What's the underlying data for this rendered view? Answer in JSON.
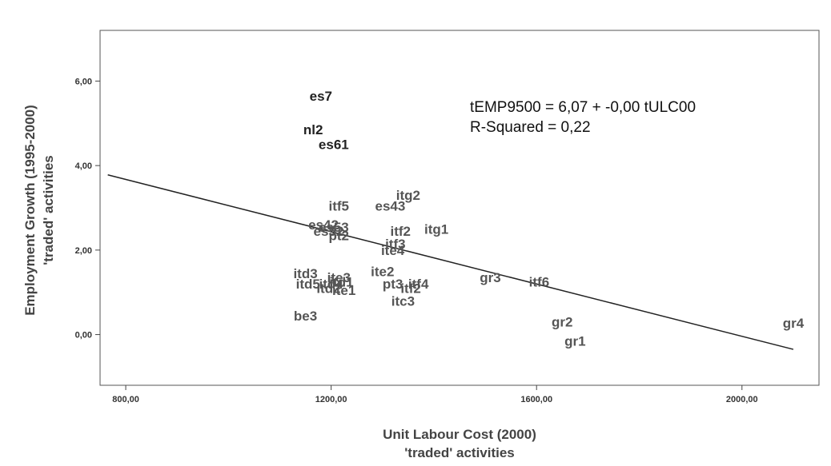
{
  "chart_data": {
    "type": "scatter",
    "xlabel": [
      "Unit Labour Cost (2000)",
      "'traded' activities"
    ],
    "ylabel": [
      "Employment Growth (1995-2000)",
      "'traded' activities"
    ],
    "xlim": [
      750,
      2150
    ],
    "ylim": [
      -1.2,
      7.2
    ],
    "x_ticks": [
      800,
      1200,
      1600,
      2000
    ],
    "x_tick_labels": [
      "800,00",
      "1200,00",
      "1600,00",
      "2000,00"
    ],
    "y_ticks": [
      0,
      2,
      4,
      6
    ],
    "y_tick_labels": [
      "0,00",
      "2,00",
      "4,00",
      "6,00"
    ],
    "grid": false,
    "annotation": {
      "equation": "tEMP9500 = 6,07 + -0,00 tULC00",
      "r_squared": "R-Squared = 0,22"
    },
    "fit_line": {
      "x": [
        765,
        2100
      ],
      "y": [
        3.78,
        -0.35
      ]
    },
    "points": [
      {
        "label": "es7",
        "x": 1180,
        "y": 5.65,
        "dark": true
      },
      {
        "label": "nl2",
        "x": 1165,
        "y": 4.85,
        "dark": true
      },
      {
        "label": "es61",
        "x": 1205,
        "y": 4.5,
        "dark": true
      },
      {
        "label": "itg2",
        "x": 1350,
        "y": 3.3
      },
      {
        "label": "itf5",
        "x": 1215,
        "y": 3.05
      },
      {
        "label": "es43",
        "x": 1315,
        "y": 3.05
      },
      {
        "label": "es42",
        "x": 1185,
        "y": 2.6
      },
      {
        "label": "es53",
        "x": 1205,
        "y": 2.55
      },
      {
        "label": "es52",
        "x": 1195,
        "y": 2.45
      },
      {
        "label": "pt2",
        "x": 1215,
        "y": 2.35
      },
      {
        "label": "itf2",
        "x": 1335,
        "y": 2.45
      },
      {
        "label": "itg1",
        "x": 1405,
        "y": 2.5
      },
      {
        "label": "itf3",
        "x": 1325,
        "y": 2.15
      },
      {
        "label": "ite4",
        "x": 1320,
        "y": 2.0
      },
      {
        "label": "ite2",
        "x": 1300,
        "y": 1.5
      },
      {
        "label": "itd3",
        "x": 1150,
        "y": 1.45
      },
      {
        "label": "ite3",
        "x": 1215,
        "y": 1.35
      },
      {
        "label": "itd5",
        "x": 1155,
        "y": 1.2
      },
      {
        "label": "itd4",
        "x": 1200,
        "y": 1.2
      },
      {
        "label": "itd1",
        "x": 1220,
        "y": 1.25
      },
      {
        "label": "itd2",
        "x": 1195,
        "y": 1.1
      },
      {
        "label": "ite1",
        "x": 1225,
        "y": 1.05
      },
      {
        "label": "gr3",
        "x": 1510,
        "y": 1.35
      },
      {
        "label": "itf6",
        "x": 1605,
        "y": 1.25
      },
      {
        "label": "pt3",
        "x": 1320,
        "y": 1.2
      },
      {
        "label": "itf4",
        "x": 1370,
        "y": 1.2
      },
      {
        "label": "itf2",
        "x": 1355,
        "y": 1.1
      },
      {
        "label": "itc3",
        "x": 1340,
        "y": 0.8
      },
      {
        "label": "be3",
        "x": 1150,
        "y": 0.45
      },
      {
        "label": "gr2",
        "x": 1650,
        "y": 0.3
      },
      {
        "label": "gr1",
        "x": 1675,
        "y": -0.15
      },
      {
        "label": "gr4",
        "x": 2100,
        "y": 0.28
      }
    ]
  },
  "colors": {
    "axis": "#444444",
    "fit_line": "#222222",
    "plot_background": "#ffffff",
    "label": "#555555",
    "label_dark": "#222222"
  }
}
